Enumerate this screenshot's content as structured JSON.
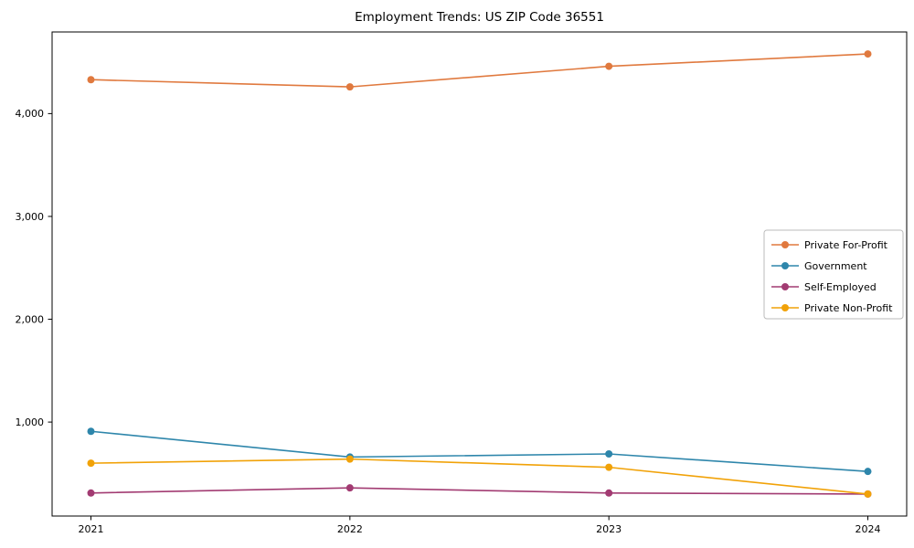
{
  "chart_data": {
    "type": "line",
    "title": "Employment Trends: US ZIP Code 36551",
    "xlabel": "",
    "ylabel": "",
    "grid": false,
    "legend_position": "center-right",
    "x": [
      2021,
      2022,
      2023,
      2024
    ],
    "x_tick_labels": [
      "2021",
      "2022",
      "2023",
      "2024"
    ],
    "y_ticks": [
      1000,
      2000,
      3000,
      4000
    ],
    "y_tick_labels": [
      "1,000",
      "2,000",
      "3,000",
      "4,000"
    ],
    "xlim": [
      2020.85,
      2024.15
    ],
    "ylim": [
      86,
      4794
    ],
    "series": [
      {
        "name": "Private For-Profit",
        "color": "#e0793e",
        "values": [
          4330,
          4260,
          4460,
          4580
        ]
      },
      {
        "name": "Government",
        "color": "#2e86ab",
        "values": [
          910,
          660,
          690,
          520
        ]
      },
      {
        "name": "Self-Employed",
        "color": "#a23b72",
        "values": [
          310,
          360,
          310,
          300
        ]
      },
      {
        "name": "Private Non-Profit",
        "color": "#f1a208",
        "values": [
          600,
          640,
          560,
          300
        ]
      }
    ]
  },
  "colors": {
    "axis": "#000000",
    "text": "#000000",
    "legend_border": "#bbbbbb",
    "background": "#ffffff"
  }
}
